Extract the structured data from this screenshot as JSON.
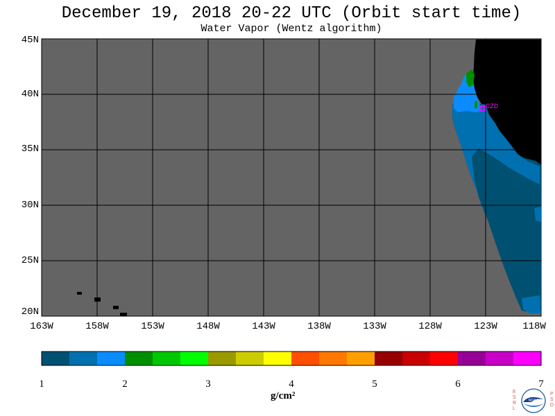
{
  "title": "December 19, 2018  20-22 UTC  (Orbit start time)",
  "subtitle": "Water Vapor (Wentz algorithm)",
  "lat_labels": [
    "45N",
    "40N",
    "35N",
    "30N",
    "25N",
    "20N"
  ],
  "lon_labels": [
    "163W",
    "158W",
    "153W",
    "148W",
    "143W",
    "138W",
    "133W",
    "128W",
    "123W",
    "118W"
  ],
  "station_label": "CZD",
  "colorbar": {
    "ticks": [
      "1",
      "2",
      "3",
      "4",
      "5",
      "6",
      "7"
    ],
    "unit": "g/cm²",
    "colors": [
      "#005072",
      "#0070b0",
      "#0a8cff",
      "#008f00",
      "#00c800",
      "#00ff00",
      "#9a9a00",
      "#cccc00",
      "#ffff00",
      "#ff5000",
      "#ff7800",
      "#ffa000",
      "#960000",
      "#c80000",
      "#ff0000",
      "#960096",
      "#c800c8",
      "#ff00ff"
    ]
  },
  "map_colors": {
    "no_data": "#646464",
    "land": "#000000",
    "grid": "#000000",
    "station": "#ff00ff"
  },
  "logo": {
    "left_letters": "ESRL",
    "right_letters": "PSD",
    "center_text": "NOAA"
  }
}
